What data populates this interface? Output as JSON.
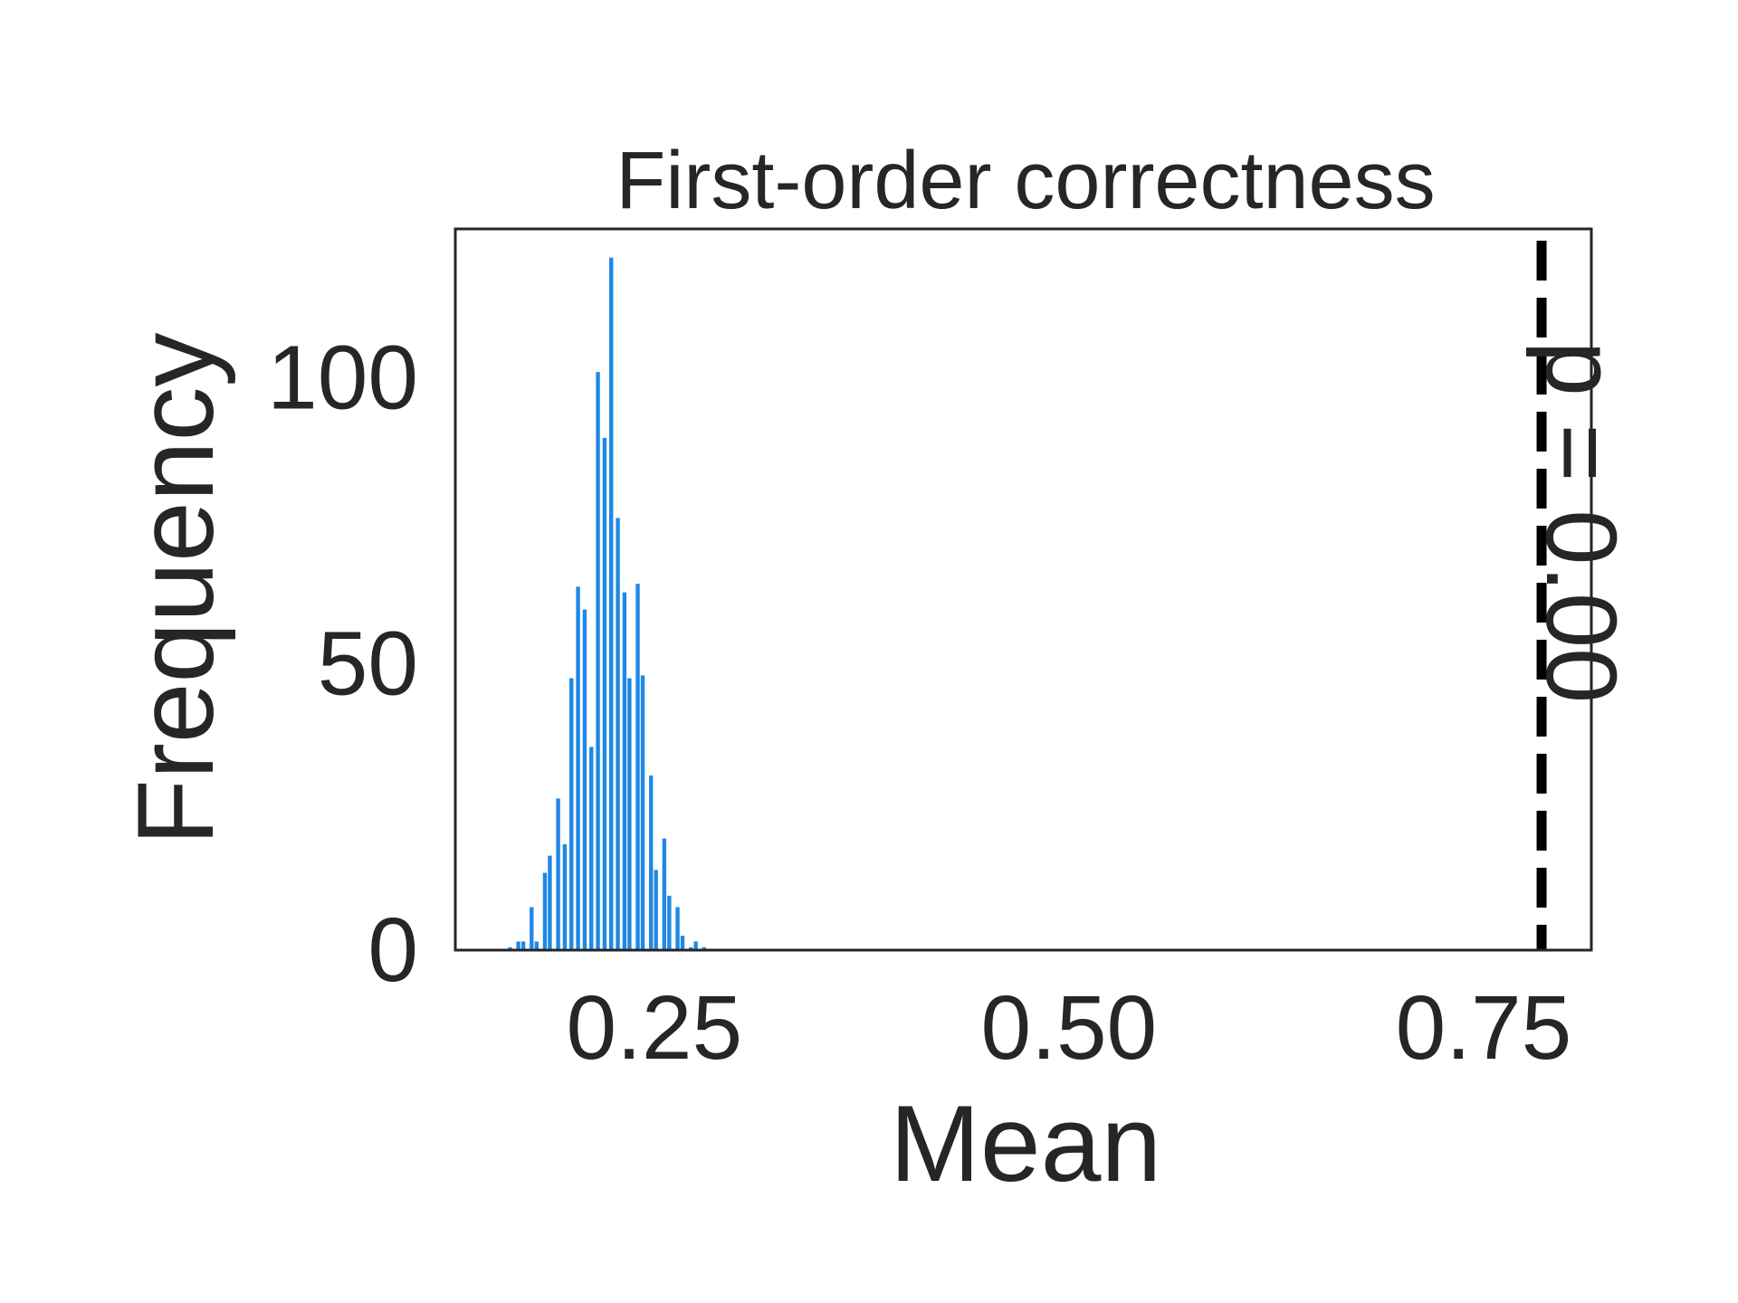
{
  "chart_data": {
    "type": "bar",
    "title": "First-order correctness",
    "xlabel": "Mean",
    "ylabel": "Frequency",
    "xlim": [
      0.13,
      0.815
    ],
    "ylim": [
      0,
      126
    ],
    "xticks": [
      0.25,
      0.5,
      0.75
    ],
    "xtick_labels": [
      "0.25",
      "0.50",
      "0.75"
    ],
    "yticks": [
      0,
      50,
      100
    ],
    "ytick_labels": [
      "0",
      "50",
      "100"
    ],
    "grid": false,
    "bar_color": "#1e88e5",
    "bar_width": 0.0024,
    "series": [
      {
        "x": [
          0.163,
          0.168,
          0.171,
          0.176,
          0.179,
          0.184,
          0.187,
          0.192,
          0.196,
          0.2,
          0.204,
          0.208,
          0.212,
          0.216,
          0.22,
          0.224,
          0.228,
          0.232,
          0.235,
          0.24,
          0.243,
          0.248,
          0.251,
          0.256,
          0.259,
          0.264,
          0.267,
          0.272,
          0.275,
          0.28
        ],
        "values": [
          0.5,
          1.5,
          1.5,
          7.5,
          1.5,
          13.5,
          16.5,
          26.5,
          18.5,
          47.5,
          63.5,
          59.5,
          35.5,
          101,
          89.5,
          121,
          75.5,
          62.5,
          47.5,
          64,
          48,
          30.5,
          14,
          19.5,
          9.5,
          7.5,
          2.5,
          0.5,
          1.5,
          0.5
        ]
      }
    ],
    "reference_line": {
      "x": 0.785,
      "style": "dashed",
      "color": "#000000",
      "label": "p = 0.00"
    }
  }
}
